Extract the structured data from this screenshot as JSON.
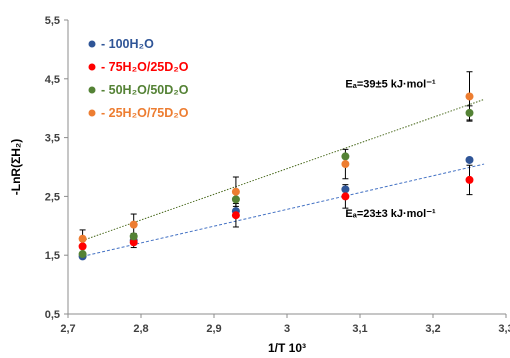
{
  "chart_data": {
    "type": "scatter",
    "xlabel": "1/T 10³",
    "ylabel": "-LnR(ΣH₂)",
    "xlim": [
      2.7,
      3.3
    ],
    "ylim": [
      0.5,
      5.5
    ],
    "x_ticks": [
      "2,7",
      "2,8",
      "2,9",
      "3",
      "3,1",
      "3,2",
      "3,3"
    ],
    "y_ticks": [
      "0,5",
      "1,5",
      "2,5",
      "3,5",
      "4,5",
      "5,5"
    ],
    "grid": false,
    "legend_position": "top-left",
    "series": [
      {
        "name": "- 100H₂O",
        "color": "#2f5597",
        "x": [
          2.72,
          2.79,
          2.93,
          3.08,
          3.25
        ],
        "y": [
          1.48,
          1.75,
          2.25,
          2.62,
          3.12
        ],
        "yerr": [
          0.0,
          0.12,
          0.0,
          0.0,
          0.0
        ]
      },
      {
        "name": "- 75H₂O/25D₂O",
        "color": "#ff0000",
        "x": [
          2.72,
          2.79,
          2.93,
          3.08,
          3.25
        ],
        "y": [
          1.65,
          1.72,
          2.18,
          2.5,
          2.78
        ],
        "yerr": [
          0.0,
          0.0,
          0.2,
          0.2,
          0.25
        ]
      },
      {
        "name": "- 50H₂O/50D₂O",
        "color": "#548235",
        "x": [
          2.72,
          2.79,
          2.93,
          3.08,
          3.25
        ],
        "y": [
          1.52,
          1.82,
          2.45,
          3.18,
          3.92
        ],
        "yerr": [
          0.0,
          0.0,
          0.0,
          0.0,
          0.12
        ]
      },
      {
        "name": "- 25H₂O/75D₂O",
        "color": "#ed7d31",
        "x": [
          2.72,
          2.79,
          2.93,
          3.08,
          3.25
        ],
        "y": [
          1.78,
          2.02,
          2.58,
          3.05,
          4.2
        ],
        "yerr": [
          0.15,
          0.18,
          0.25,
          0.25,
          0.42
        ]
      }
    ],
    "trendlines": [
      {
        "x": [
          2.72,
          3.27
        ],
        "y": [
          1.75,
          4.15
        ],
        "color": "#4a6a1e",
        "dash": "dotted"
      },
      {
        "x": [
          2.72,
          3.27
        ],
        "y": [
          1.48,
          3.05
        ],
        "color": "#4472c4",
        "dash": "dashed"
      }
    ],
    "annotations": [
      {
        "text": "Eₐ=39±5 kJ·mol⁻¹",
        "x": 3.08,
        "y": 4.35
      },
      {
        "text": "Eₐ=23±3 kJ·mol⁻¹",
        "x": 3.08,
        "y": 2.15
      }
    ]
  }
}
